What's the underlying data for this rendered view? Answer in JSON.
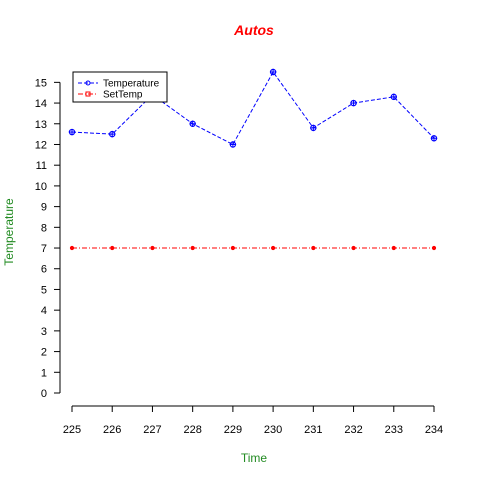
{
  "chart_data": {
    "type": "line",
    "title": "Autos",
    "xlabel": "Time",
    "ylabel": "Temperature",
    "x": [
      225,
      226,
      227,
      228,
      229,
      230,
      231,
      232,
      233,
      234
    ],
    "x_ticks": [
      "225",
      "226",
      "227",
      "228",
      "229",
      "230",
      "231",
      "232",
      "233",
      "234"
    ],
    "y_ticks": [
      "0",
      "1",
      "2",
      "3",
      "4",
      "5",
      "6",
      "7",
      "8",
      "9",
      "10",
      "11",
      "12",
      "13",
      "14",
      "15"
    ],
    "xlim": [
      225,
      234
    ],
    "ylim": [
      0,
      15.5
    ],
    "grid": false,
    "legend_position": "top-left",
    "series": [
      {
        "name": "Temperature",
        "values": [
          12.6,
          12.5,
          14.4,
          13.0,
          12.0,
          15.5,
          12.8,
          14.0,
          14.3,
          12.3
        ],
        "color": "#0000ff",
        "line_style": "dashed",
        "marker": "circle-plus"
      },
      {
        "name": "SetTemp",
        "values": [
          7,
          7,
          7,
          7,
          7,
          7,
          7,
          7,
          7,
          7
        ],
        "color": "#ff0000",
        "line_style": "dash-dot",
        "marker": "filled-circle"
      }
    ],
    "colors": {
      "title": "#ff0000",
      "axis_labels": "#228b22"
    }
  }
}
